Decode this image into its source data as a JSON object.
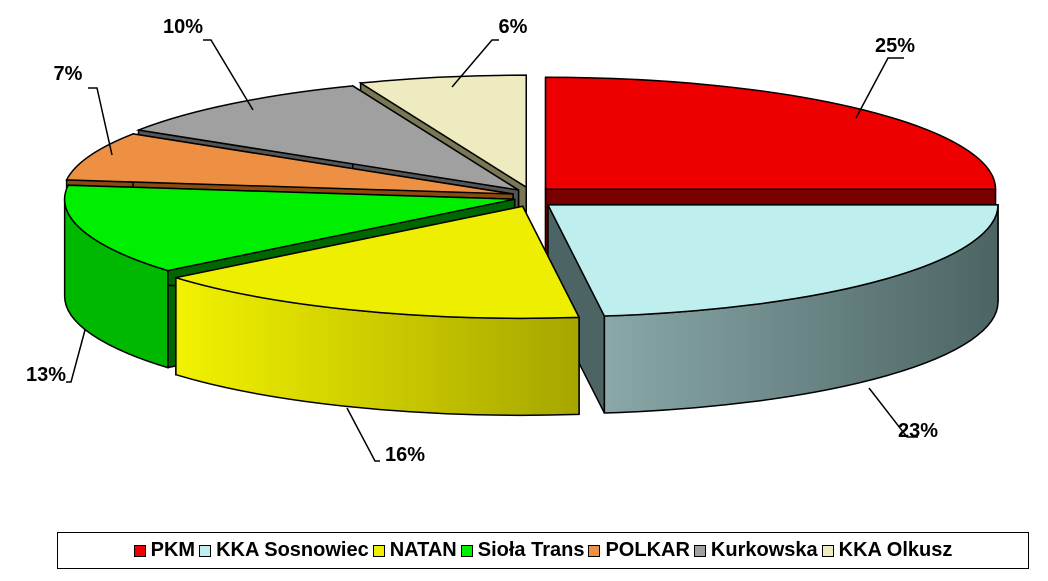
{
  "chart_data": {
    "type": "pie",
    "variant": "3d-exploded",
    "title": "",
    "categories": [
      "PKM",
      "KKA Sosnowiec",
      "NATAN",
      "Sioła Trans",
      "POLKAR",
      "Kurkowska",
      "KKA Olkusz"
    ],
    "values": [
      25,
      23,
      16,
      13,
      7,
      10,
      6
    ],
    "labels": [
      "25%",
      "23%",
      "16%",
      "13%",
      "7%",
      "10%",
      "6%"
    ],
    "colors": [
      "#ee0000",
      "#bfeeee",
      "#eeee00",
      "#00ee00",
      "#ee9044",
      "#a0a0a0",
      "#efebc0"
    ],
    "legend_position": "bottom"
  }
}
